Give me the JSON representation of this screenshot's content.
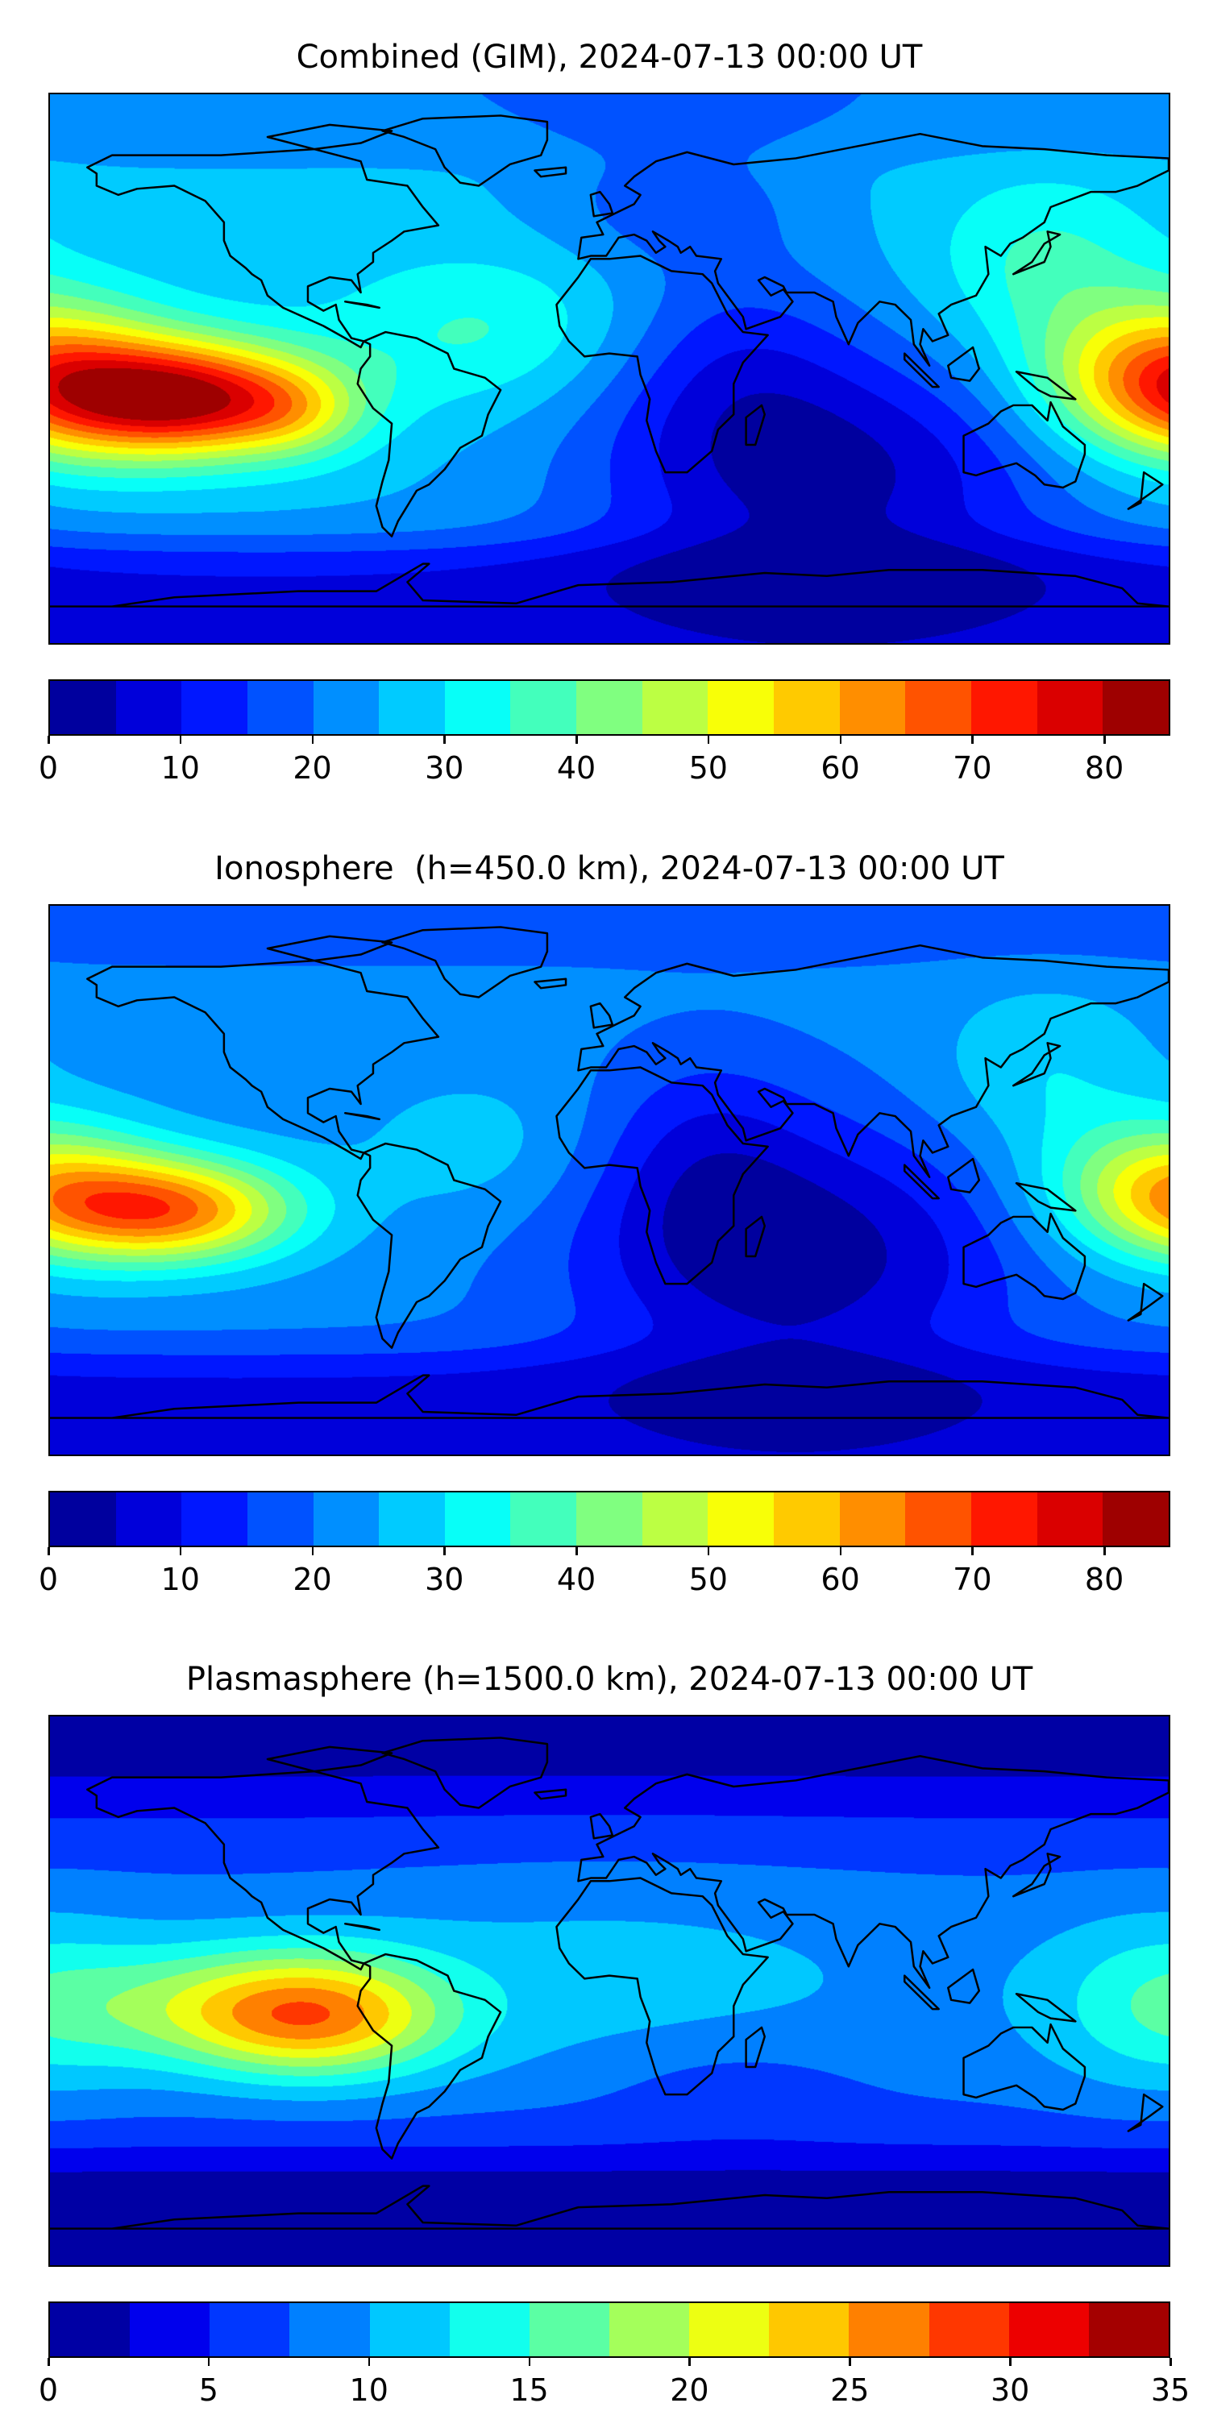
{
  "chart_data": [
    {
      "type": "heatmap",
      "subtype": "filled-contour world map",
      "title": "Combined (GIM), 2024-07-13 00:00 UT",
      "colormap": "jet",
      "levels": [
        0,
        5,
        10,
        15,
        20,
        25,
        30,
        35,
        40,
        45,
        50,
        55,
        60,
        65,
        70,
        75,
        80,
        85
      ],
      "colorbar_ticks": [
        "0",
        "10",
        "20",
        "30",
        "40",
        "50",
        "60",
        "70",
        "80"
      ],
      "colorbar_range": [
        0,
        85
      ],
      "features": {
        "max_region": "eastern Pacific, ~140W-110W, 0-20S, values 75-85",
        "secondary_max": "western Pacific east of Indonesia, values 55-65",
        "min_region": "southern Indian Ocean / Antarctica, values 0-5"
      }
    },
    {
      "type": "heatmap",
      "subtype": "filled-contour world map",
      "title": "Ionosphere  (h=450.0 km), 2024-07-13 00:00 UT",
      "colormap": "jet",
      "levels": [
        0,
        5,
        10,
        15,
        20,
        25,
        30,
        35,
        40,
        45,
        50,
        55,
        60,
        65,
        70,
        75,
        80,
        85
      ],
      "colorbar_ticks": [
        "0",
        "10",
        "20",
        "30",
        "40",
        "50",
        "60",
        "70",
        "80"
      ],
      "colorbar_range": [
        0,
        85
      ],
      "features": {
        "max_region": "eastern Pacific, ~150W-120W, 0-20S, values 55-65",
        "secondary_max": "western Pacific east of Indonesia, values 45-55",
        "min_region": "Indian Ocean / Africa / Antarctica, values 0-10"
      }
    },
    {
      "type": "heatmap",
      "subtype": "filled-contour world map",
      "title": "Plasmasphere (h=1500.0 km), 2024-07-13 00:00 UT",
      "colormap": "jet",
      "levels": [
        0,
        2.5,
        5,
        7.5,
        10,
        12.5,
        15,
        17.5,
        20,
        22.5,
        25,
        27.5,
        30,
        32.5,
        35
      ],
      "colorbar_ticks": [
        "0",
        "5",
        "10",
        "15",
        "20",
        "25",
        "30",
        "35"
      ],
      "colorbar_range": [
        0,
        35
      ],
      "features": {
        "max_region": "eastern Pacific near South America, ~100W-80W, 5-20S, values 25-27.5",
        "min_region": "polar regions, values 0-2.5"
      }
    }
  ]
}
